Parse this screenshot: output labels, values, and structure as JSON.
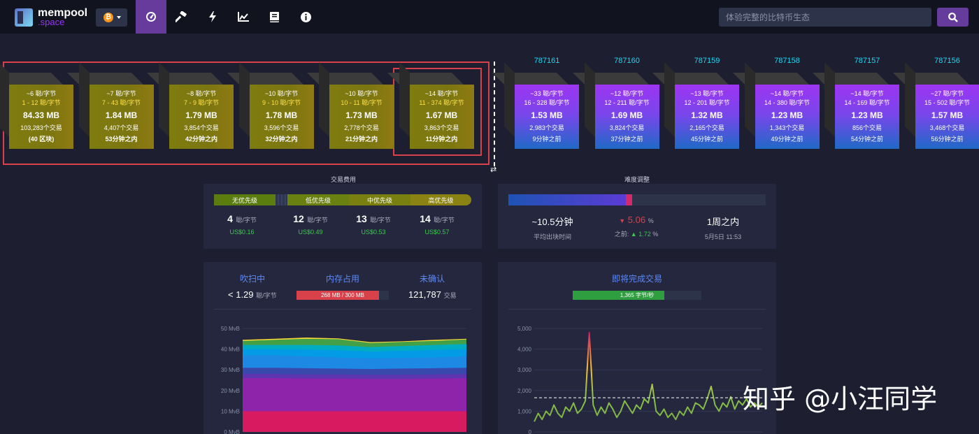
{
  "app": {
    "logo_line1": "mempool",
    "logo_line2": ".space",
    "btc_symbol": "₿"
  },
  "nav": {
    "icons": [
      "dashboard-icon",
      "hammer-icon",
      "lightning-icon",
      "chart-icon",
      "book-icon",
      "info-icon"
    ],
    "active": "dashboard-icon",
    "search_placeholder": "体验完整的比特币生态"
  },
  "mempool_blocks": [
    {
      "fee": "~6 聪/字节",
      "range": "1 - 12 聪/字节",
      "size": "84.33 MB",
      "tx": "103,283个交易",
      "eta": "(40 区块)"
    },
    {
      "fee": "~7 聪/字节",
      "range": "7 - 43 聪/字节",
      "size": "1.84 MB",
      "tx": "4,407个交易",
      "eta": "53分钟之内"
    },
    {
      "fee": "~8 聪/字节",
      "range": "7 - 9 聪/字节",
      "size": "1.79 MB",
      "tx": "3,854个交易",
      "eta": "42分钟之内"
    },
    {
      "fee": "~10 聪/字节",
      "range": "9 - 10 聪/字节",
      "size": "1.78 MB",
      "tx": "3,596个交易",
      "eta": "32分钟之内"
    },
    {
      "fee": "~10 聪/字节",
      "range": "10 - 11 聪/字节",
      "size": "1.73 MB",
      "tx": "2,778个交易",
      "eta": "21分钟之内"
    },
    {
      "fee": "~14 聪/字节",
      "range": "11 - 374 聪/字节",
      "size": "1.67 MB",
      "tx": "3,863个交易",
      "eta": "11分钟之内"
    }
  ],
  "mined_blocks": [
    {
      "height": "787161",
      "fee": "~33 聪/字节",
      "range": "16 - 328 聪/字节",
      "size": "1.53 MB",
      "tx": "2,983个交易",
      "ago": "9分钟之前"
    },
    {
      "height": "787160",
      "fee": "~12 聪/字节",
      "range": "12 - 211 聪/字节",
      "size": "1.69 MB",
      "tx": "3,824个交易",
      "ago": "37分钟之前"
    },
    {
      "height": "787159",
      "fee": "~13 聪/字节",
      "range": "12 - 201 聪/字节",
      "size": "1.32 MB",
      "tx": "2,165个交易",
      "ago": "45分钟之前"
    },
    {
      "height": "787158",
      "fee": "~14 聪/字节",
      "range": "14 - 380 聪/字节",
      "size": "1.23 MB",
      "tx": "1,343个交易",
      "ago": "49分钟之前"
    },
    {
      "height": "787157",
      "fee": "~14 聪/字节",
      "range": "14 - 169 聪/字节",
      "size": "1.23 MB",
      "tx": "856个交易",
      "ago": "54分钟之前"
    },
    {
      "height": "787156",
      "fee": "~27 聪/字节",
      "range": "15 - 502 聪/字节",
      "size": "1.57 MB",
      "tx": "3,468个交易",
      "ago": "56分钟之前"
    }
  ],
  "fees": {
    "title": "交易费用",
    "labels": [
      "无优先级",
      "低优先级",
      "中优先级",
      "高优先级"
    ],
    "values": [
      "4",
      "12",
      "13",
      "14"
    ],
    "unit": "聪/字节",
    "usd": [
      "US$0.16",
      "US$0.49",
      "US$0.53",
      "US$0.57"
    ]
  },
  "difficulty": {
    "title": "难度调整",
    "progress_pct": 48,
    "avg_time": "~10.5分钟",
    "avg_label": "平均出块时间",
    "change": "5.06",
    "pct": "%",
    "prev_label": "之前:",
    "prev_change": "1.72",
    "eta": "1周之内",
    "date": "5月5日 11:53"
  },
  "mempool_stats": {
    "h1": "吹扫中",
    "h2": "内存占用",
    "h3": "未确认",
    "purge_prefix": "< ",
    "purge_value": "1.29",
    "purge_unit": "聪/字节",
    "memory_text": "268 MB / 300 MB",
    "memory_fraction": 0.893,
    "unconfirmed": "121,787",
    "unconfirmed_unit": "交易"
  },
  "incoming": {
    "title": "即将完成交易",
    "rate_text": "1,365 字节/秒",
    "rate_fraction": 0.71
  },
  "chart_data": [
    {
      "type": "area",
      "title": "",
      "ylabel": "MvB",
      "ylim": [
        0,
        50
      ],
      "yticks": [
        "50 MvB",
        "40 MvB",
        "30 MvB",
        "20 MvB",
        "10 MvB",
        "0 MvB"
      ],
      "series": [
        {
          "name": "band-1",
          "color": "#d81b60",
          "values": [
            10,
            10,
            10,
            10,
            10,
            10,
            10,
            10
          ]
        },
        {
          "name": "band-2",
          "color": "#8e24aa",
          "values": [
            26,
            26,
            25.8,
            25.8,
            25.6,
            25.6,
            25.8,
            26
          ]
        },
        {
          "name": "band-3",
          "color": "#5e35b1",
          "values": [
            28,
            28,
            27.8,
            27.8,
            27.6,
            27.6,
            27.8,
            28
          ]
        },
        {
          "name": "band-4",
          "color": "#3949ab",
          "values": [
            31,
            31,
            30.8,
            30.6,
            30.4,
            30.6,
            30.8,
            31
          ]
        },
        {
          "name": "band-5",
          "color": "#1e88e5",
          "values": [
            37,
            37,
            36.5,
            36,
            35.5,
            35.8,
            36,
            36.5
          ]
        },
        {
          "name": "band-6",
          "color": "#039be5",
          "values": [
            40,
            40,
            39.8,
            39.5,
            38.8,
            39.2,
            39.6,
            40
          ]
        },
        {
          "name": "band-7",
          "color": "#00acc1",
          "values": [
            42,
            42,
            42,
            41.8,
            41,
            41.5,
            42,
            42.5
          ]
        },
        {
          "name": "band-8",
          "color": "#43a047",
          "values": [
            44,
            44.5,
            45,
            44.8,
            43,
            43.5,
            44,
            44.7
          ]
        },
        {
          "name": "band-9",
          "color": "#fdd835",
          "values": [
            44.5,
            45,
            45.6,
            45.2,
            43.4,
            43.8,
            44.5,
            45
          ]
        }
      ]
    },
    {
      "type": "line",
      "title": "",
      "ylim": [
        0,
        5000
      ],
      "yticks": [
        "5,000",
        "4,000",
        "3,000",
        "2,000",
        "1,000",
        "0"
      ],
      "average": 1650,
      "values": [
        500,
        900,
        600,
        1000,
        800,
        1300,
        900,
        700,
        1200,
        1000,
        1400,
        900,
        1100,
        1500,
        4800,
        1300,
        800,
        1200,
        900,
        1400,
        1100,
        700,
        1000,
        1500,
        1200,
        900,
        1300,
        1100,
        1600,
        1400,
        2300,
        1000,
        800,
        1100,
        700,
        900,
        600,
        1000,
        800,
        1200,
        900,
        1400,
        1300,
        1100,
        1600,
        2200,
        1300,
        1000,
        1400,
        1200,
        1700,
        1100,
        1500,
        1300,
        1600,
        1200,
        1400,
        1200,
        1400
      ]
    }
  ]
}
